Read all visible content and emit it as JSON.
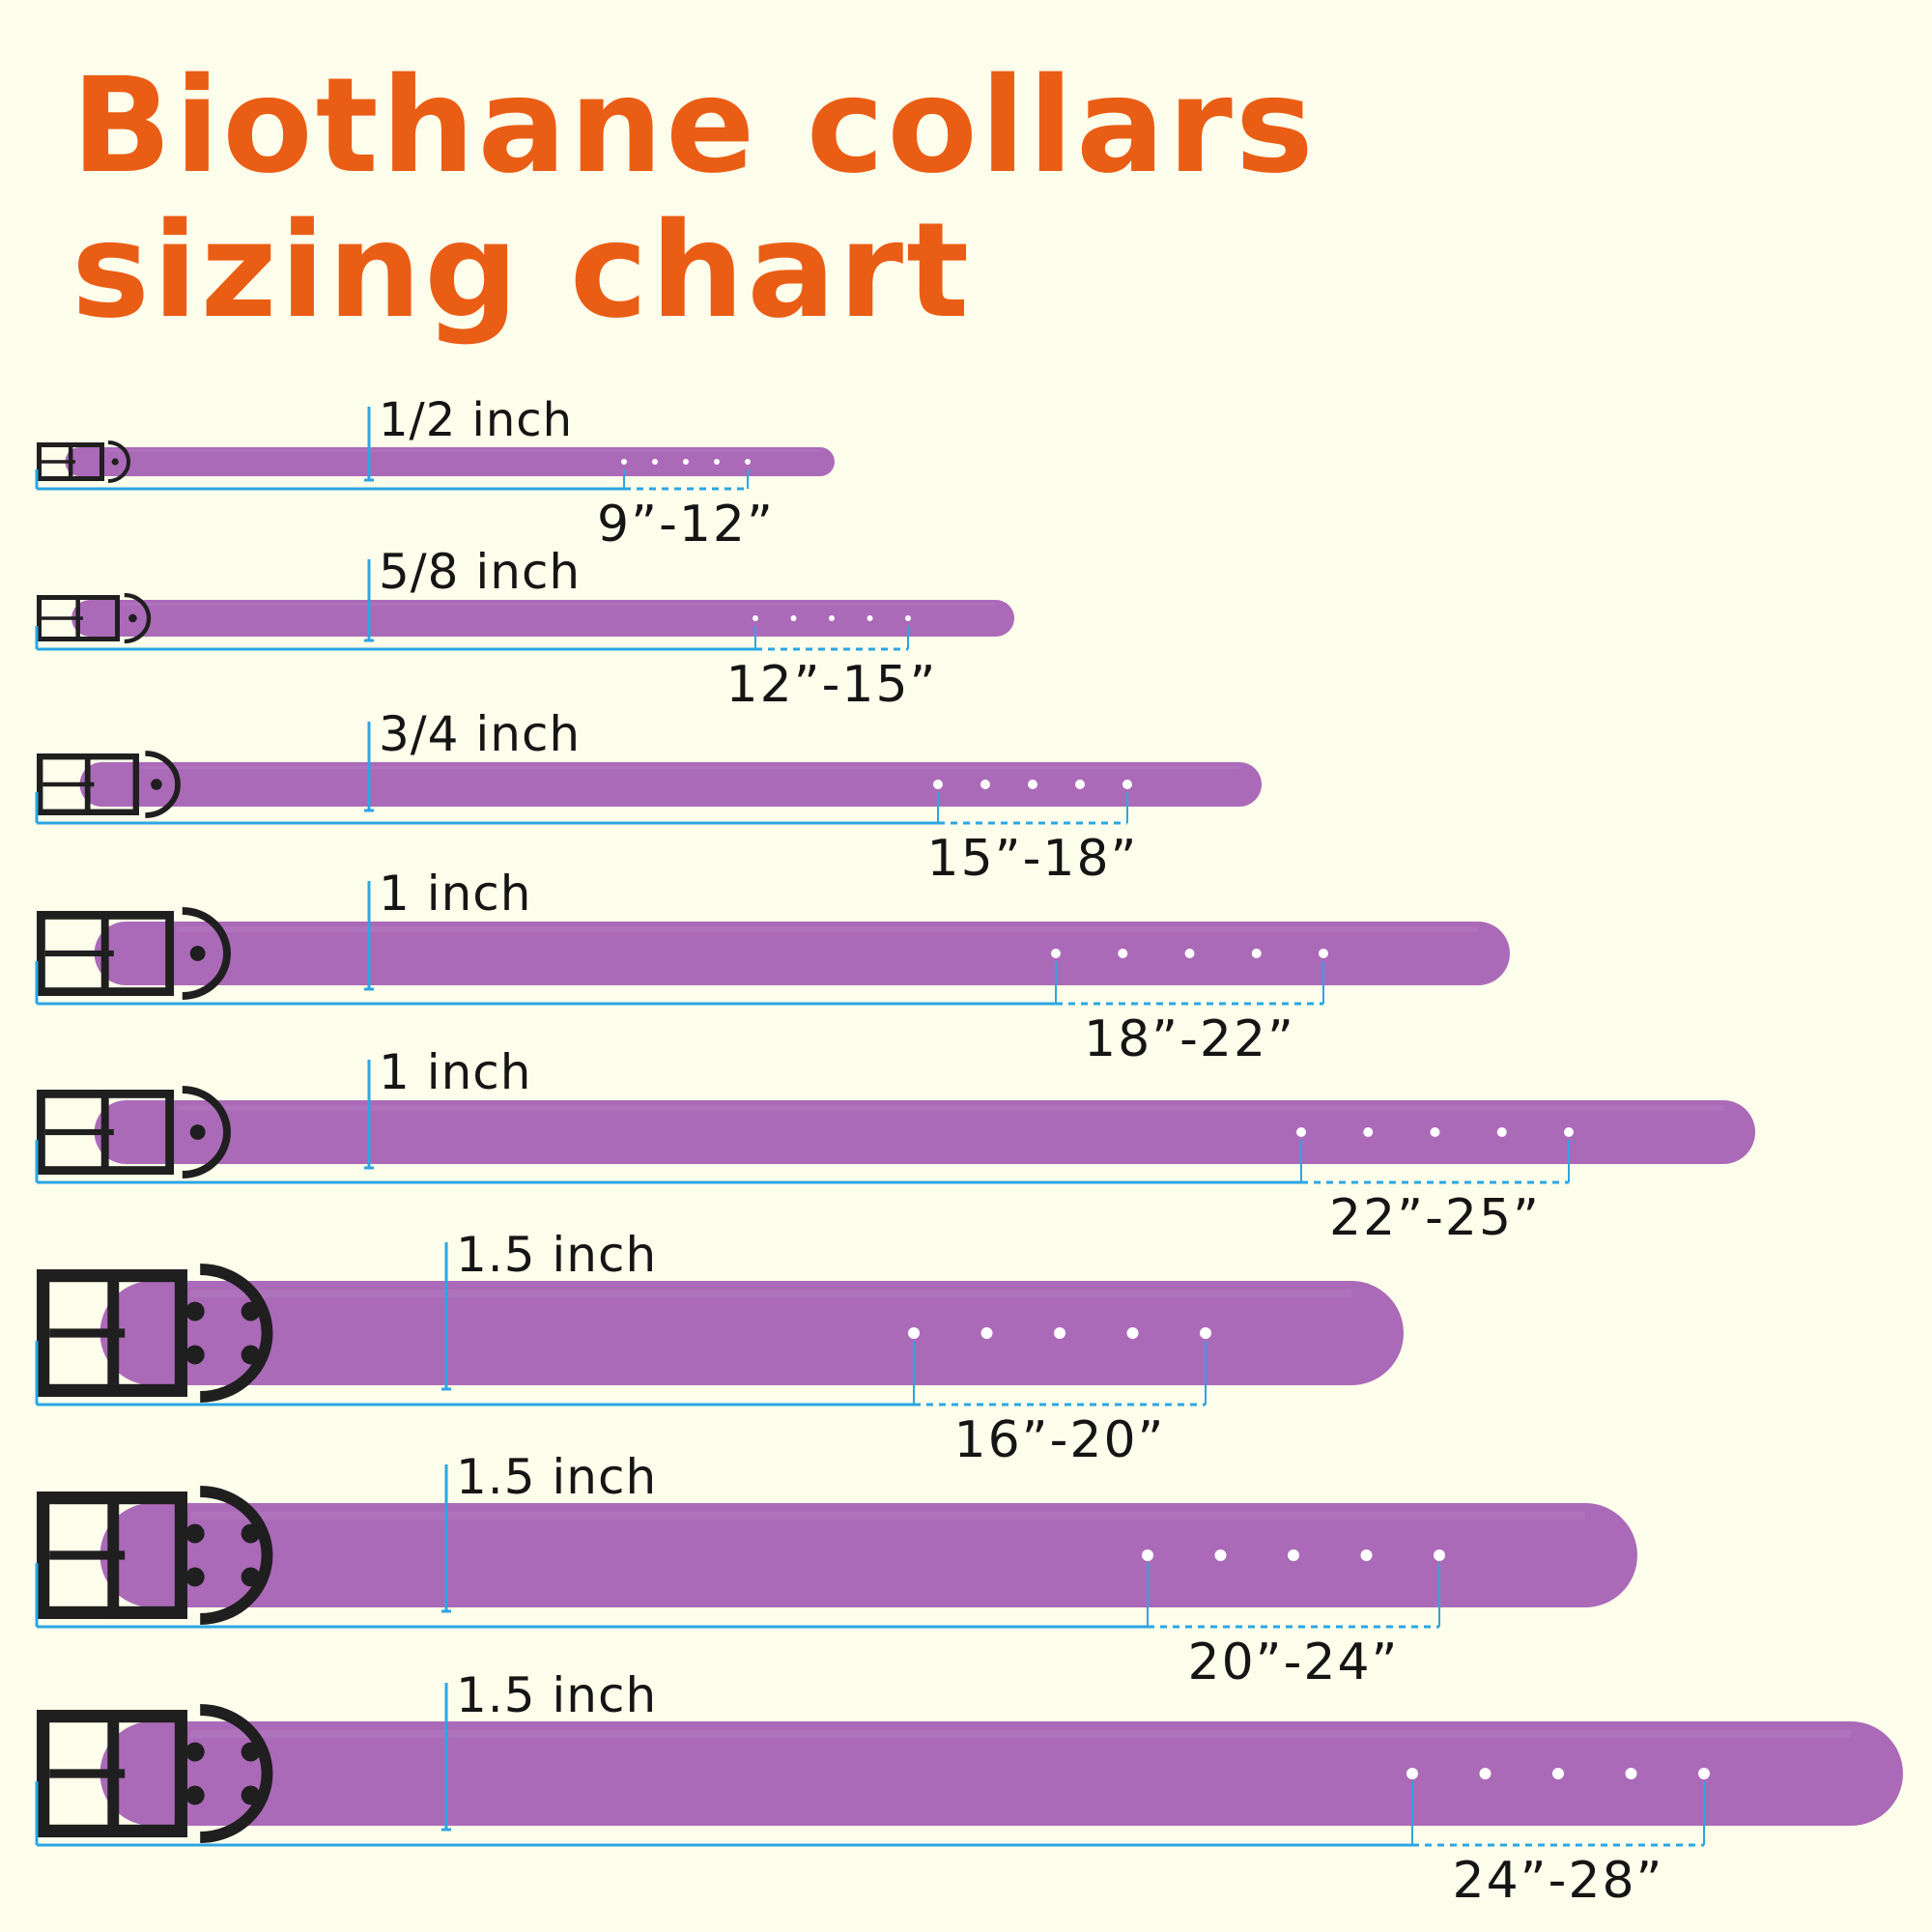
{
  "title": {
    "line1": "Biothane collars",
    "line2": "sizing chart"
  },
  "colors": {
    "background": "#fcfdea",
    "title": "#ea5d15",
    "strap": "#ab6ab8",
    "hardware": "#1f1f1f",
    "measure": "#2ba6e4",
    "text": "#151515"
  },
  "icons": {
    "buckle": "black-roller-buckle-icon",
    "d_ring": "black-d-ring-icon"
  },
  "collars": [
    {
      "width_label": "1/2 inch",
      "size_label": "9”-12”"
    },
    {
      "width_label": "5/8 inch",
      "size_label": "12”-15”"
    },
    {
      "width_label": "3/4 inch",
      "size_label": "15”-18”"
    },
    {
      "width_label": "1 inch",
      "size_label": "18”-22”"
    },
    {
      "width_label": "1 inch",
      "size_label": "22”-25”"
    },
    {
      "width_label": "1.5 inch",
      "size_label": "16”-20”"
    },
    {
      "width_label": "1.5 inch",
      "size_label": "20”-24”"
    },
    {
      "width_label": "1.5 inch",
      "size_label": "24”-28”"
    }
  ]
}
